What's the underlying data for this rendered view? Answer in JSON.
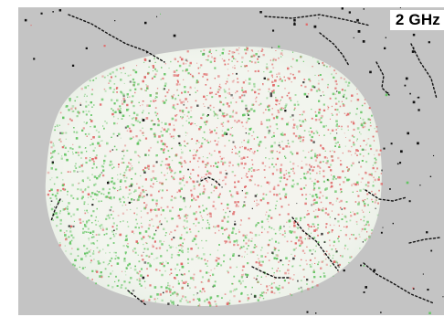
{
  "map": {
    "frequency_label": "2 GHz",
    "background_color": "#c4c4c4",
    "footprint_color": "#f4f6f0",
    "legend_colors": {
      "positive": "#e06a6a",
      "negative": "#63c463",
      "coastline": "#111111"
    }
  }
}
